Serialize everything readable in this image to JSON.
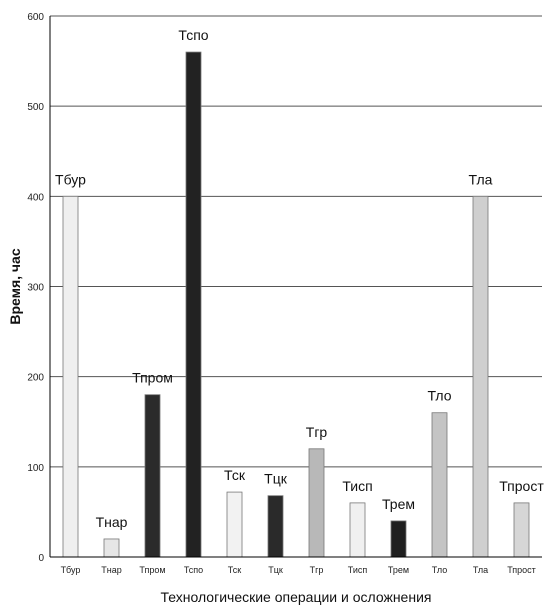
{
  "chart_data": {
    "type": "bar",
    "title": "",
    "xlabel": "Технологические операции и осложнения",
    "ylabel": "Время, час",
    "ylim": [
      0,
      600
    ],
    "y_ticks": [
      0,
      100,
      200,
      300,
      400,
      500,
      600
    ],
    "y_tick_labels": [
      "0",
      "100",
      "200",
      "300",
      "400",
      "500",
      "600"
    ],
    "grid": true,
    "categories": [
      "Тбур",
      "Тнар",
      "Тпром",
      "Тспо",
      "Тск",
      "Тцк",
      "Тгр",
      "Тисп",
      "Трем",
      "Тло",
      "Тла",
      "Тпрост"
    ],
    "data_labels": [
      "Тбур",
      "Тнар",
      "Тпром",
      "Тспо",
      "Тск",
      "Тцк",
      "Тгр",
      "Тисп",
      "Трем",
      "Тло",
      "Тла",
      "Тпрост"
    ],
    "values": [
      400,
      20,
      180,
      560,
      72,
      68,
      120,
      60,
      40,
      160,
      400,
      60
    ],
    "colors": [
      "#efefef",
      "#e6e6e6",
      "#2b2b2b",
      "#222222",
      "#f2f2f2",
      "#2a2a2a",
      "#b8b8b8",
      "#f0f0f0",
      "#1f1f1f",
      "#c4c4c4",
      "#cfcfcf",
      "#d6d6d6"
    ]
  }
}
